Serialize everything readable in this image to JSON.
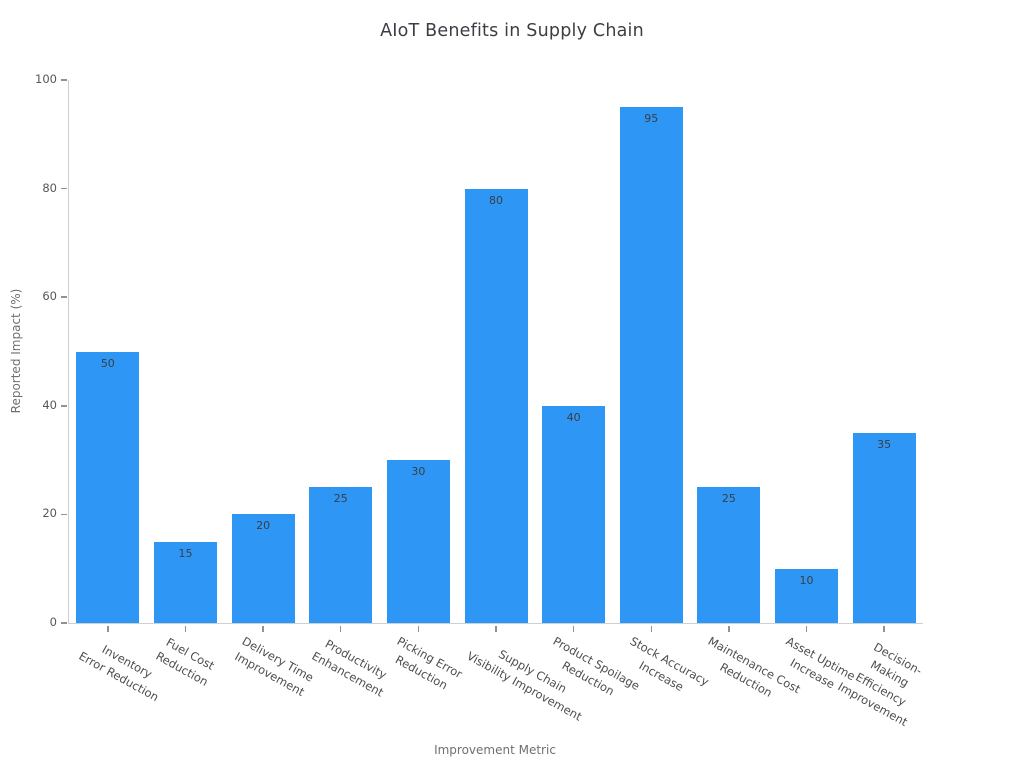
{
  "chart_data": {
    "type": "bar",
    "title": "AIoT Benefits in Supply Chain",
    "xlabel": "Improvement Metric",
    "ylabel": "Reported Impact (%)",
    "categories": [
      "Inventory\nError Reduction",
      "Fuel Cost\nReduction",
      "Delivery Time\nImprovement",
      "Productivity\nEnhancement",
      "Picking Error\nReduction",
      "Supply Chain\nVisibility Improvement",
      "Product Spoilage\nReduction",
      "Stock Accuracy\nIncrease",
      "Maintenance Cost\nReduction",
      "Asset Uptime\nIncrease",
      "Decision-Making\nEfficiency Improvement"
    ],
    "values": [
      50,
      15,
      20,
      25,
      30,
      80,
      40,
      95,
      25,
      10,
      35
    ],
    "yticks": [
      0,
      20,
      40,
      60,
      80,
      100
    ],
    "ylim": [
      0,
      100
    ],
    "bar_color": "#2e96f5",
    "bar_label_color": "#3b3e42",
    "grid": false,
    "legend": null,
    "bar_labels_inside_top": true
  }
}
